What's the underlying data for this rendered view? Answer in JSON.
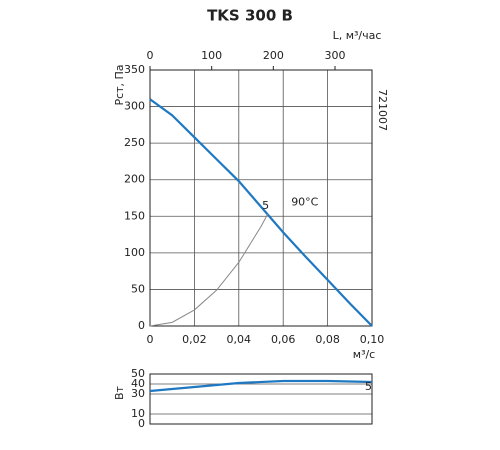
{
  "chart_data": [
    {
      "type": "line",
      "title": "TKS 300 B",
      "x_label": "м³/с",
      "x2_label": "L, м³/час",
      "y_label": "Рст, Па",
      "code": "721007",
      "xlim": [
        0,
        0.1
      ],
      "xticks": [
        0,
        {
          "value": 0.02,
          "label": "0,02"
        },
        {
          "value": 0.04,
          "label": "0,04"
        },
        {
          "value": 0.06,
          "label": "0,06"
        },
        {
          "value": 0.08,
          "label": "0,08"
        },
        {
          "value": 0.1,
          "label": "0,10"
        }
      ],
      "x2lim": [
        0,
        360
      ],
      "x2ticks": [
        0,
        100,
        200,
        300
      ],
      "ylim": [
        0,
        350
      ],
      "yticks": [
        0,
        50,
        100,
        150,
        200,
        250,
        300,
        350
      ],
      "grid": true,
      "series": [
        {
          "color": "#1f78c1",
          "x": [
            0,
            0.01,
            0.02,
            0.03,
            0.04,
            0.05,
            0.06,
            0.07,
            0.08,
            0.09,
            0.1
          ],
          "values": [
            310,
            288,
            258,
            228,
            198,
            163,
            128,
            95,
            63,
            31,
            0
          ],
          "label": "90°C"
        },
        {
          "color": "#888888",
          "x": [
            0,
            0.01,
            0.02,
            0.03,
            0.04,
            0.05,
            0.053
          ],
          "values": [
            0,
            5,
            22,
            49,
            87,
            136,
            153
          ],
          "label": "5"
        }
      ]
    },
    {
      "type": "line",
      "y_label": "Вт",
      "xlim": [
        0,
        0.1
      ],
      "ylim": [
        0,
        50
      ],
      "yticks": [
        0,
        10,
        30,
        40,
        50
      ],
      "grid": true,
      "series": [
        {
          "color": "#1f78c1",
          "x": [
            0,
            0.02,
            0.04,
            0.06,
            0.08,
            0.1
          ],
          "values": [
            33,
            37,
            41,
            43,
            43,
            42
          ],
          "label": "5"
        }
      ]
    }
  ]
}
